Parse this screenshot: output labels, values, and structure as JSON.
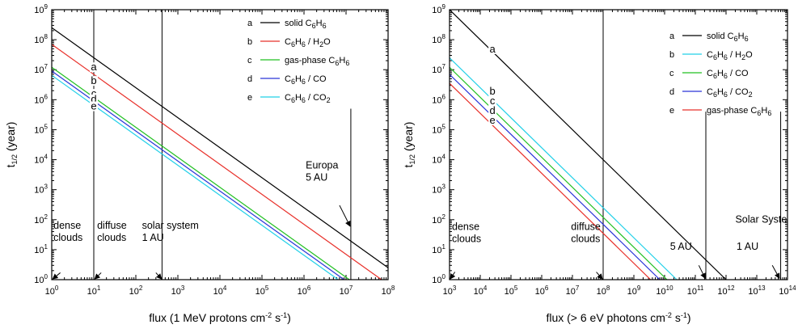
{
  "chart_data": [
    {
      "type": "line",
      "xscale": "log",
      "yscale": "log",
      "xlim": [
        1,
        100000000
      ],
      "ylim": [
        1,
        1000000000
      ],
      "xticks": [
        {
          "base": "10",
          "exp": "0"
        },
        {
          "base": "10",
          "exp": "1"
        },
        {
          "base": "10",
          "exp": "2"
        },
        {
          "base": "10",
          "exp": "3"
        },
        {
          "base": "10",
          "exp": "4"
        },
        {
          "base": "10",
          "exp": "5"
        },
        {
          "base": "10",
          "exp": "6"
        },
        {
          "base": "10",
          "exp": "7"
        },
        {
          "base": "10",
          "exp": "8"
        }
      ],
      "yticks": [
        {
          "base": "10",
          "exp": "0"
        },
        {
          "base": "10",
          "exp": "1"
        },
        {
          "base": "10",
          "exp": "2"
        },
        {
          "base": "10",
          "exp": "3"
        },
        {
          "base": "10",
          "exp": "4"
        },
        {
          "base": "10",
          "exp": "5"
        },
        {
          "base": "10",
          "exp": "6"
        },
        {
          "base": "10",
          "exp": "7"
        },
        {
          "base": "10",
          "exp": "8"
        },
        {
          "base": "10",
          "exp": "9"
        }
      ],
      "xlabel": [
        {
          "t": "flux (1 MeV protons cm"
        },
        {
          "t": "-2",
          "sup": true
        },
        {
          "t": " s"
        },
        {
          "t": "-1",
          "sup": true
        },
        {
          "t": ")"
        }
      ],
      "ylabel": [
        {
          "t": "t"
        },
        {
          "t": "1/2",
          "sub": true
        },
        {
          "t": " (year)"
        }
      ],
      "legend_position": "top-right",
      "series": [
        {
          "letter": "a",
          "color": "#000000",
          "legend": [
            {
              "t": "solid C"
            },
            {
              "t": "6",
              "sub": true
            },
            {
              "t": "H"
            },
            {
              "t": "6",
              "sub": true
            }
          ],
          "points": [
            [
              1,
              250000000
            ],
            [
              100000000,
              2.5
            ]
          ]
        },
        {
          "letter": "b",
          "color": "#e8302a",
          "legend": [
            {
              "t": "C"
            },
            {
              "t": "6",
              "sub": true
            },
            {
              "t": "H"
            },
            {
              "t": "6",
              "sub": true
            },
            {
              "t": " / H"
            },
            {
              "t": "2",
              "sub": true
            },
            {
              "t": "O"
            }
          ],
          "points": [
            [
              1,
              70000000
            ],
            [
              70000000,
              1
            ]
          ]
        },
        {
          "letter": "c",
          "color": "#22c022",
          "legend": [
            {
              "t": "gas-phase C"
            },
            {
              "t": "6",
              "sub": true
            },
            {
              "t": "H"
            },
            {
              "t": "6",
              "sub": true
            }
          ],
          "points": [
            [
              1,
              12000000
            ],
            [
              12000000,
              1
            ]
          ]
        },
        {
          "letter": "d",
          "color": "#2a34d8",
          "legend": [
            {
              "t": "C"
            },
            {
              "t": "6",
              "sub": true
            },
            {
              "t": "H"
            },
            {
              "t": "6",
              "sub": true
            },
            {
              "t": " / CO"
            }
          ],
          "points": [
            [
              1,
              9000000
            ],
            [
              9000000,
              1
            ]
          ]
        },
        {
          "letter": "e",
          "color": "#22d0e8",
          "legend": [
            {
              "t": "C"
            },
            {
              "t": "6",
              "sub": true
            },
            {
              "t": "H"
            },
            {
              "t": "6",
              "sub": true
            },
            {
              "t": " / CO"
            },
            {
              "t": "2",
              "sub": true
            }
          ],
          "points": [
            [
              1,
              6500000
            ],
            [
              6500000,
              1
            ]
          ]
        }
      ],
      "letter_positions": [
        {
          "letter": "a",
          "x": 10,
          "y": 10000000
        },
        {
          "letter": "b",
          "x": 10,
          "y": 3500000
        },
        {
          "letter": "c",
          "x": 10,
          "y": 1300000
        },
        {
          "letter": "d",
          "x": 10,
          "y": 850000
        },
        {
          "letter": "e",
          "x": 10,
          "y": 500000
        }
      ],
      "markers": [
        {
          "x": 10,
          "y_from": 1,
          "y_to": 1000000000
        },
        {
          "x": 420,
          "y_from": 1,
          "y_to": 1000000000
        },
        {
          "x": 13000000,
          "y_from": 1,
          "y_to": 500000
        }
      ],
      "annotations": [
        {
          "lines": [
            "dense",
            "clouds"
          ],
          "x": 1.1,
          "y": 50,
          "arrow": {
            "from": [
              1.6,
              1.7
            ],
            "to": [
              1.05,
              1.05
            ]
          }
        },
        {
          "lines": [
            "diffuse",
            "clouds"
          ],
          "x": 12,
          "y": 50,
          "arrow": {
            "from": [
              15,
              1.7
            ],
            "to": [
              10.5,
              1.05
            ]
          }
        },
        {
          "lines": [
            "solar system",
            "1 AU"
          ],
          "x": 140,
          "y": 50,
          "arrow": {
            "from": [
              300,
              1.7
            ],
            "to": [
              410,
              1.05
            ]
          }
        },
        {
          "lines": [
            "Europa",
            "5 AU"
          ],
          "x": 1100000,
          "y": 5000,
          "arrow": {
            "from": [
              7000000,
              300
            ],
            "to": [
              12500000,
              60
            ]
          }
        }
      ]
    },
    {
      "type": "line",
      "xscale": "log",
      "yscale": "log",
      "xlim": [
        1000,
        100000000000000
      ],
      "ylim": [
        1,
        1000000000
      ],
      "xticks": [
        {
          "base": "10",
          "exp": "3"
        },
        {
          "base": "10",
          "exp": "4"
        },
        {
          "base": "10",
          "exp": "5"
        },
        {
          "base": "10",
          "exp": "6"
        },
        {
          "base": "10",
          "exp": "7"
        },
        {
          "base": "10",
          "exp": "8"
        },
        {
          "base": "10",
          "exp": "9"
        },
        {
          "base": "10",
          "exp": "10"
        },
        {
          "base": "10",
          "exp": "11"
        },
        {
          "base": "10",
          "exp": "12"
        },
        {
          "base": "10",
          "exp": "13"
        },
        {
          "base": "10",
          "exp": "14"
        }
      ],
      "yticks": [
        {
          "base": "10",
          "exp": "0"
        },
        {
          "base": "10",
          "exp": "1"
        },
        {
          "base": "10",
          "exp": "2"
        },
        {
          "base": "10",
          "exp": "3"
        },
        {
          "base": "10",
          "exp": "4"
        },
        {
          "base": "10",
          "exp": "5"
        },
        {
          "base": "10",
          "exp": "6"
        },
        {
          "base": "10",
          "exp": "7"
        },
        {
          "base": "10",
          "exp": "8"
        },
        {
          "base": "10",
          "exp": "9"
        }
      ],
      "xlabel": [
        {
          "t": "flux (> 6 eV photons cm"
        },
        {
          "t": "-2",
          "sup": true
        },
        {
          "t": " s"
        },
        {
          "t": "-1",
          "sup": true
        },
        {
          "t": ")"
        }
      ],
      "ylabel": [
        {
          "t": "t"
        },
        {
          "t": "1/2",
          "sub": true
        },
        {
          "t": " (year)"
        }
      ],
      "legend_position": "top-right",
      "series": [
        {
          "letter": "a",
          "color": "#000000",
          "legend": [
            {
              "t": "solid C"
            },
            {
              "t": "6",
              "sub": true
            },
            {
              "t": "H"
            },
            {
              "t": "6",
              "sub": true
            }
          ],
          "points": [
            [
              1000,
              1000000000
            ],
            [
              1000000000000,
              1
            ]
          ]
        },
        {
          "letter": "b",
          "color": "#22d0e8",
          "legend": [
            {
              "t": "C"
            },
            {
              "t": "6",
              "sub": true
            },
            {
              "t": "H"
            },
            {
              "t": "6",
              "sub": true
            },
            {
              "t": " / H"
            },
            {
              "t": "2",
              "sub": true
            },
            {
              "t": "O"
            }
          ],
          "points": [
            [
              1000,
              25000000
            ],
            [
              25000000000,
              1
            ]
          ]
        },
        {
          "letter": "c",
          "color": "#22c022",
          "legend": [
            {
              "t": "C"
            },
            {
              "t": "6",
              "sub": true
            },
            {
              "t": "H"
            },
            {
              "t": "6",
              "sub": true
            },
            {
              "t": " / CO"
            }
          ],
          "points": [
            [
              1000,
              12000000
            ],
            [
              12000000000,
              1
            ]
          ]
        },
        {
          "letter": "d",
          "color": "#2a34d8",
          "legend": [
            {
              "t": "C"
            },
            {
              "t": "6",
              "sub": true
            },
            {
              "t": "H"
            },
            {
              "t": "6",
              "sub": true
            },
            {
              "t": " / CO"
            },
            {
              "t": "2",
              "sub": true
            }
          ],
          "points": [
            [
              1000,
              7000000
            ],
            [
              7000000000,
              1
            ]
          ]
        },
        {
          "letter": "e",
          "color": "#e8302a",
          "legend": [
            {
              "t": "gas-phase C"
            },
            {
              "t": "6",
              "sub": true
            },
            {
              "t": "H"
            },
            {
              "t": "6",
              "sub": true
            }
          ],
          "points": [
            [
              1000,
              3500000
            ],
            [
              3500000000,
              1
            ]
          ]
        }
      ],
      "letter_positions": [
        {
          "letter": "a",
          "x": 25000,
          "y": 40000000
        },
        {
          "letter": "b",
          "x": 25000,
          "y": 1600000
        },
        {
          "letter": "c",
          "x": 25000,
          "y": 750000
        },
        {
          "letter": "d",
          "x": 25000,
          "y": 360000
        },
        {
          "letter": "e",
          "x": 25000,
          "y": 170000
        }
      ],
      "markers": [
        {
          "x": 100000000,
          "y_from": 1,
          "y_to": 1000000000
        },
        {
          "x": 220000000000,
          "y_from": 1,
          "y_to": 400000
        },
        {
          "x": 60000000000000,
          "y_from": 1,
          "y_to": 400000
        }
      ],
      "annotations": [
        {
          "lines": [
            "dense",
            "clouds"
          ],
          "x": 1200,
          "y": 45,
          "arrow": {
            "from": [
              1500,
              1.8
            ],
            "to": [
              1050,
              1.05
            ]
          }
        },
        {
          "lines": [
            "diffuse",
            "clouds"
          ],
          "x": 9000000,
          "y": 45,
          "arrow": {
            "from": [
              60000000,
              1.8
            ],
            "to": [
              95000000,
              1.05
            ]
          }
        },
        {
          "lines": [
            "Solar System"
          ],
          "x": 2000000000000,
          "y": 80,
          "arrow": null
        },
        {
          "lines": [
            "5 AU"
          ],
          "x": 15000000000,
          "y": 10,
          "arrow": {
            "from": [
              130000000000,
              3
            ],
            "to": [
              210000000000,
              1.1
            ]
          }
        },
        {
          "lines": [
            "1 AU"
          ],
          "x": 2200000000000,
          "y": 10,
          "arrow": {
            "from": [
              32000000000000,
              3
            ],
            "to": [
              55000000000000,
              1.1
            ]
          }
        }
      ]
    }
  ]
}
